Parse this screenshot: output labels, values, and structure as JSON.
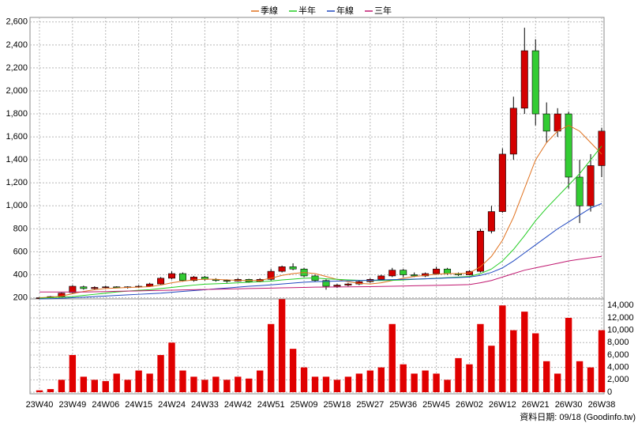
{
  "chart_data": {
    "type": "candlestick",
    "categories": [
      "23W40",
      null,
      null,
      "23W49",
      null,
      null,
      "24W06",
      null,
      null,
      "24W15",
      null,
      null,
      "24W24",
      null,
      null,
      "24W33",
      null,
      null,
      "24W42",
      null,
      null,
      "24W51",
      null,
      null,
      "25W09",
      null,
      null,
      "25W18",
      null,
      null,
      "25W27",
      null,
      null,
      "25W36",
      null,
      null,
      "25W45",
      null,
      null,
      "26W02",
      null,
      null,
      "26W12",
      null,
      null,
      "26W21",
      null,
      null,
      "26W30",
      null,
      null,
      "26W38"
    ],
    "open": [
      195,
      200,
      210,
      245,
      295,
      280,
      290,
      295,
      290,
      295,
      300,
      320,
      370,
      410,
      350,
      380,
      360,
      350,
      345,
      360,
      340,
      360,
      430,
      470,
      450,
      390,
      350,
      300,
      310,
      320,
      340,
      360,
      390,
      440,
      400,
      390,
      410,
      450,
      410,
      400,
      430,
      780,
      950,
      1450,
      1850,
      2350,
      1800,
      1650,
      1800,
      1250,
      1000,
      1350
    ],
    "high": [
      205,
      215,
      245,
      310,
      305,
      300,
      305,
      300,
      300,
      310,
      330,
      380,
      430,
      420,
      390,
      390,
      370,
      360,
      370,
      365,
      370,
      450,
      480,
      500,
      460,
      400,
      360,
      320,
      330,
      350,
      370,
      400,
      460,
      450,
      420,
      420,
      470,
      460,
      420,
      440,
      800,
      1000,
      1500,
      1950,
      2550,
      2450,
      1900,
      1850,
      1820,
      1400,
      1450,
      1680
    ],
    "low": [
      188,
      195,
      205,
      240,
      270,
      270,
      280,
      285,
      280,
      285,
      295,
      315,
      360,
      340,
      340,
      350,
      340,
      330,
      340,
      330,
      335,
      350,
      420,
      440,
      380,
      340,
      270,
      285,
      300,
      310,
      330,
      350,
      380,
      380,
      380,
      380,
      400,
      400,
      390,
      395,
      420,
      760,
      940,
      1400,
      1800,
      1700,
      1550,
      1600,
      1150,
      850,
      950,
      1250
    ],
    "close": [
      200,
      210,
      240,
      300,
      280,
      290,
      295,
      290,
      295,
      300,
      320,
      370,
      410,
      350,
      380,
      360,
      350,
      345,
      360,
      340,
      360,
      430,
      470,
      450,
      390,
      350,
      300,
      310,
      320,
      340,
      360,
      390,
      440,
      400,
      390,
      410,
      450,
      410,
      400,
      430,
      780,
      950,
      1450,
      1850,
      2350,
      1800,
      1650,
      1800,
      1250,
      1000,
      1350,
      1650
    ],
    "up_color": "#d40000",
    "down_color": "#33cc33",
    "series": [
      {
        "name": "季線",
        "color": "#e0701c",
        "values": [
          200,
          205,
          215,
          235,
          255,
          270,
          280,
          285,
          290,
          292,
          297,
          310,
          330,
          345,
          355,
          362,
          360,
          355,
          352,
          350,
          352,
          370,
          395,
          410,
          420,
          410,
          385,
          360,
          340,
          325,
          320,
          330,
          350,
          370,
          385,
          395,
          405,
          410,
          410,
          415,
          470,
          560,
          700,
          900,
          1150,
          1400,
          1550,
          1650,
          1700,
          1650,
          1550,
          1450
        ]
      },
      {
        "name": "半年",
        "color": "#22cc22",
        "values": [
          195,
          200,
          205,
          210,
          220,
          230,
          240,
          250,
          258,
          265,
          270,
          280,
          290,
          300,
          310,
          318,
          322,
          325,
          330,
          335,
          340,
          345,
          355,
          362,
          370,
          372,
          365,
          360,
          355,
          352,
          350,
          350,
          352,
          355,
          360,
          365,
          370,
          375,
          380,
          385,
          410,
          450,
          520,
          620,
          740,
          870,
          980,
          1080,
          1180,
          1280,
          1400,
          1520
        ]
      },
      {
        "name": "年線",
        "color": "#2048c0",
        "values": [
          190,
          192,
          195,
          200,
          205,
          210,
          215,
          220,
          225,
          230,
          235,
          240,
          248,
          255,
          262,
          270,
          278,
          285,
          292,
          300,
          305,
          312,
          320,
          328,
          335,
          340,
          342,
          345,
          347,
          350,
          352,
          355,
          358,
          360,
          362,
          365,
          368,
          372,
          376,
          380,
          395,
          420,
          460,
          520,
          590,
          660,
          730,
          800,
          860,
          920,
          980,
          1020
        ]
      },
      {
        "name": "三年",
        "color": "#c01870",
        "values": [
          250,
          250,
          250,
          250,
          250,
          252,
          254,
          256,
          258,
          260,
          262,
          264,
          266,
          268,
          270,
          272,
          274,
          276,
          278,
          280,
          282,
          284,
          286,
          288,
          290,
          292,
          293,
          294,
          295,
          296,
          297,
          298,
          300,
          302,
          304,
          306,
          308,
          310,
          312,
          315,
          330,
          350,
          380,
          410,
          440,
          460,
          480,
          500,
          520,
          535,
          548,
          560
        ]
      }
    ],
    "ylim": [
      190,
      2640
    ],
    "yticks": [
      200,
      400,
      600,
      800,
      {
        "value": 1000,
        "label": "1,000"
      },
      {
        "value": 1200,
        "label": "1,200"
      },
      {
        "value": 1400,
        "label": "1,400"
      },
      {
        "value": 1600,
        "label": "1,600"
      },
      {
        "value": 1800,
        "label": "1,800"
      },
      {
        "value": 2000,
        "label": "2,000"
      },
      {
        "value": 2200,
        "label": "2,200"
      },
      {
        "value": 2400,
        "label": "2,400"
      },
      {
        "value": 2600,
        "label": "2,600"
      }
    ],
    "volume": [
      300,
      500,
      2000,
      6000,
      2500,
      2000,
      1800,
      3000,
      2000,
      3500,
      3000,
      6000,
      8000,
      3500,
      2500,
      2000,
      2500,
      2000,
      2500,
      2200,
      3500,
      11000,
      15000,
      7000,
      4000,
      2500,
      2500,
      2000,
      2500,
      3000,
      3500,
      4000,
      11000,
      4500,
      3000,
      3500,
      3000,
      2000,
      5500,
      4500,
      11000,
      7500,
      14000,
      10000,
      13000,
      9500,
      5000,
      3000,
      12000,
      5000,
      4000,
      10000
    ],
    "volume_color": "#e00000",
    "y2lim": [
      0,
      14800
    ],
    "y2ticks": [
      0,
      {
        "value": 2000,
        "label": "2,000"
      },
      {
        "value": 4000,
        "label": "4,000"
      },
      {
        "value": 6000,
        "label": "6,000"
      },
      {
        "value": 8000,
        "label": "8,000"
      },
      {
        "value": 10000,
        "label": "10,000"
      },
      {
        "value": 12000,
        "label": "12,000"
      },
      {
        "value": 14000,
        "label": "14,000"
      }
    ],
    "grid": true,
    "legend": "top",
    "footer": "資料日期: 09/18 (Goodinfo.tw)"
  }
}
